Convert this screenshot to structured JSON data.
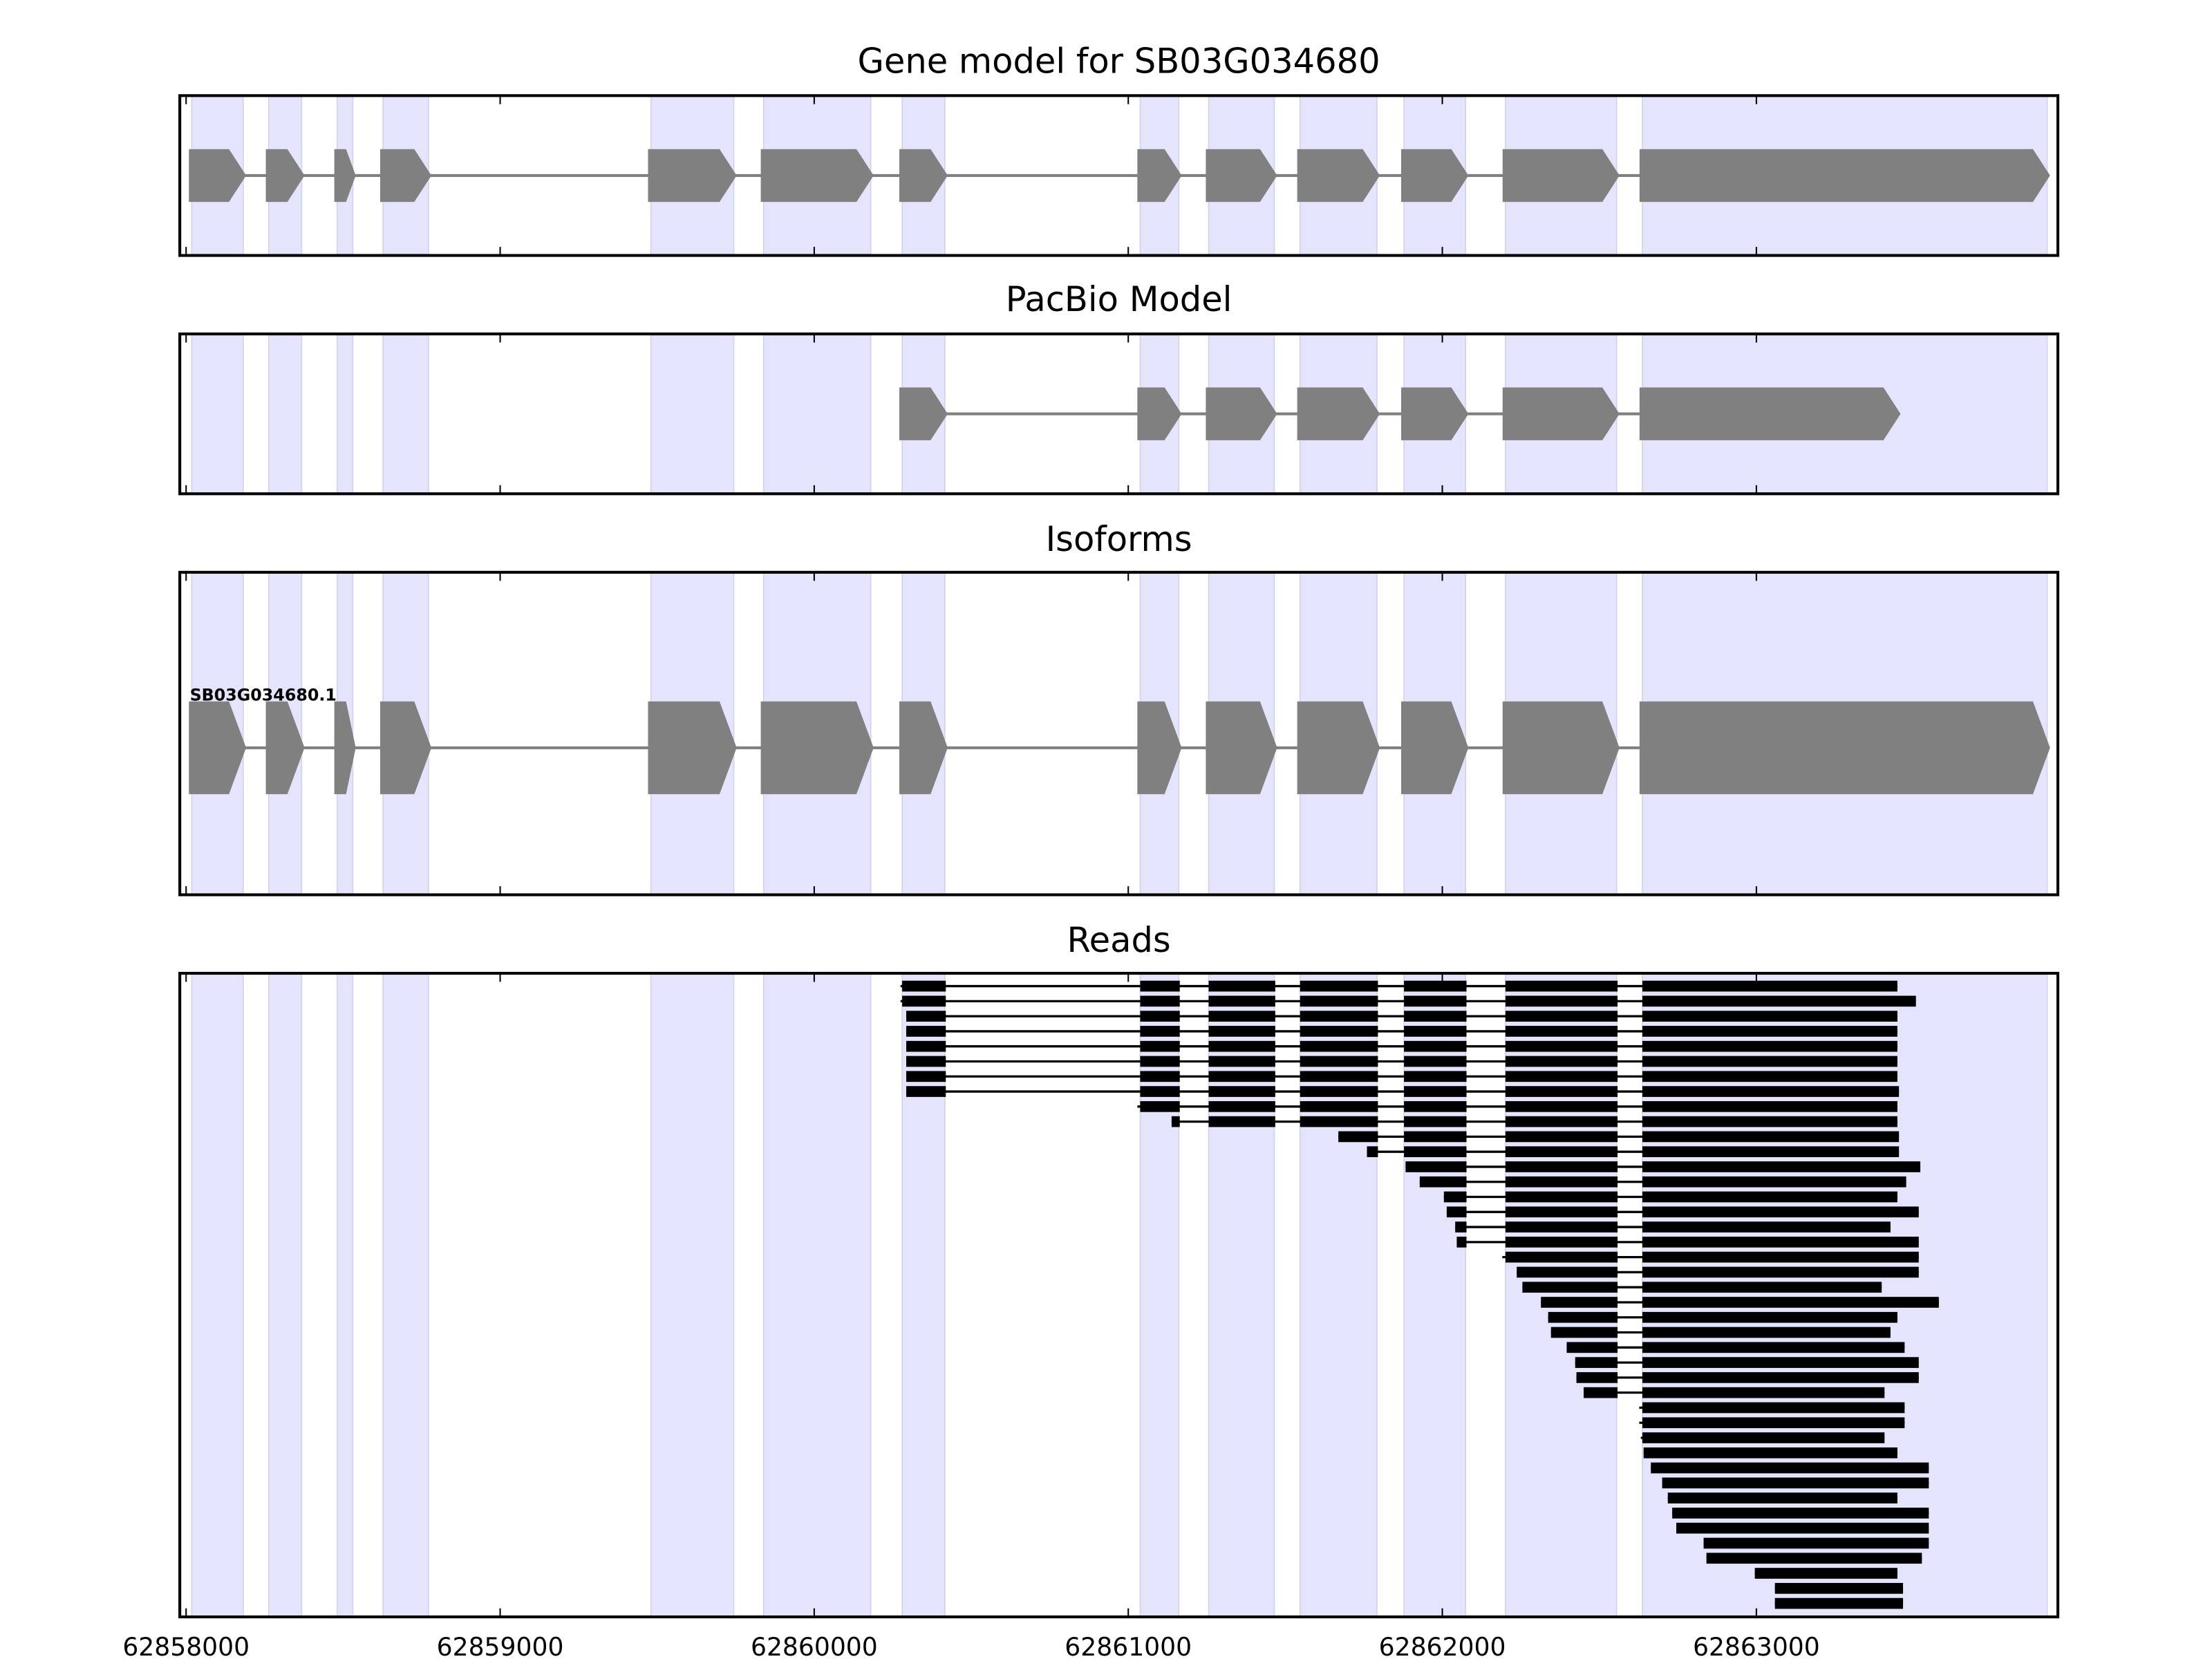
{
  "chart_data": {
    "type": "gene-track",
    "xlim": [
      62857980,
      62863960
    ],
    "xticks": [
      62858000,
      62859000,
      62860000,
      62861000,
      62862000,
      62863000
    ],
    "xtick_labels": [
      "62858000",
      "62859000",
      "62860000",
      "62861000",
      "62862000",
      "62863000"
    ],
    "colors": {
      "band": "#e4e4fc",
      "band_edge": "#d2d2ee",
      "exon": "#808080",
      "read": "#000000"
    },
    "exon_bands": [
      [
        62858018,
        62858182
      ],
      [
        62858263,
        62858368
      ],
      [
        62858481,
        62858531
      ],
      [
        62858627,
        62858772
      ],
      [
        62859480,
        62859744
      ],
      [
        62859839,
        62860180
      ],
      [
        62860280,
        62860416
      ],
      [
        62861038,
        62861161
      ],
      [
        62861256,
        62861465
      ],
      [
        62861547,
        62861792
      ],
      [
        62861878,
        62862074
      ],
      [
        62862201,
        62862555
      ],
      [
        62862637,
        62863926
      ]
    ],
    "panels": [
      {
        "title": "Gene model for SB03G034680",
        "kind": "model",
        "exons": [
          0,
          1,
          2,
          3,
          4,
          5,
          6,
          7,
          8,
          9,
          10,
          11,
          12
        ]
      },
      {
        "title": "PacBio Model",
        "kind": "model",
        "exons": [
          6,
          7,
          8,
          9,
          10,
          11,
          12
        ],
        "last_end": 62863450
      },
      {
        "title": "Isoforms",
        "kind": "isoform",
        "label": "SB03G034680.1",
        "exons": [
          0,
          1,
          2,
          3,
          4,
          5,
          6,
          7,
          8,
          9,
          10,
          11,
          12
        ]
      },
      {
        "title": "Reads",
        "kind": "reads"
      }
    ],
    "reads": [
      [
        62860275,
        62863449
      ],
      [
        62860275,
        62863508
      ],
      [
        62860293,
        62863449
      ],
      [
        62860293,
        62863449
      ],
      [
        62860293,
        62863449
      ],
      [
        62860293,
        62863449
      ],
      [
        62860293,
        62863449
      ],
      [
        62860293,
        62863454
      ],
      [
        62861029,
        62863449
      ],
      [
        62861138,
        62863449
      ],
      [
        62861669,
        62863454
      ],
      [
        62861760,
        62863454
      ],
      [
        62861883,
        62863522
      ],
      [
        62861928,
        62863477
      ],
      [
        62862005,
        62863449
      ],
      [
        62862014,
        62863517
      ],
      [
        62862041,
        62863427
      ],
      [
        62862046,
        62863517
      ],
      [
        62862191,
        62863517
      ],
      [
        62862237,
        62863517
      ],
      [
        62862255,
        62863399
      ],
      [
        62862314,
        62863581
      ],
      [
        62862337,
        62863449
      ],
      [
        62862346,
        62863427
      ],
      [
        62862396,
        62863472
      ],
      [
        62862423,
        62863517
      ],
      [
        62862427,
        62863517
      ],
      [
        62862450,
        62863408
      ],
      [
        62862627,
        62863472
      ],
      [
        62862627,
        62863472
      ],
      [
        62862632,
        62863408
      ],
      [
        62862641,
        62863449
      ],
      [
        62862664,
        62863549
      ],
      [
        62862700,
        62863549
      ],
      [
        62862718,
        62863449
      ],
      [
        62862732,
        62863549
      ],
      [
        62862745,
        62863549
      ],
      [
        62862832,
        62863549
      ],
      [
        62862841,
        62863527
      ],
      [
        62862995,
        62863449
      ],
      [
        62863059,
        62863467
      ],
      [
        62863059,
        62863467
      ]
    ]
  }
}
